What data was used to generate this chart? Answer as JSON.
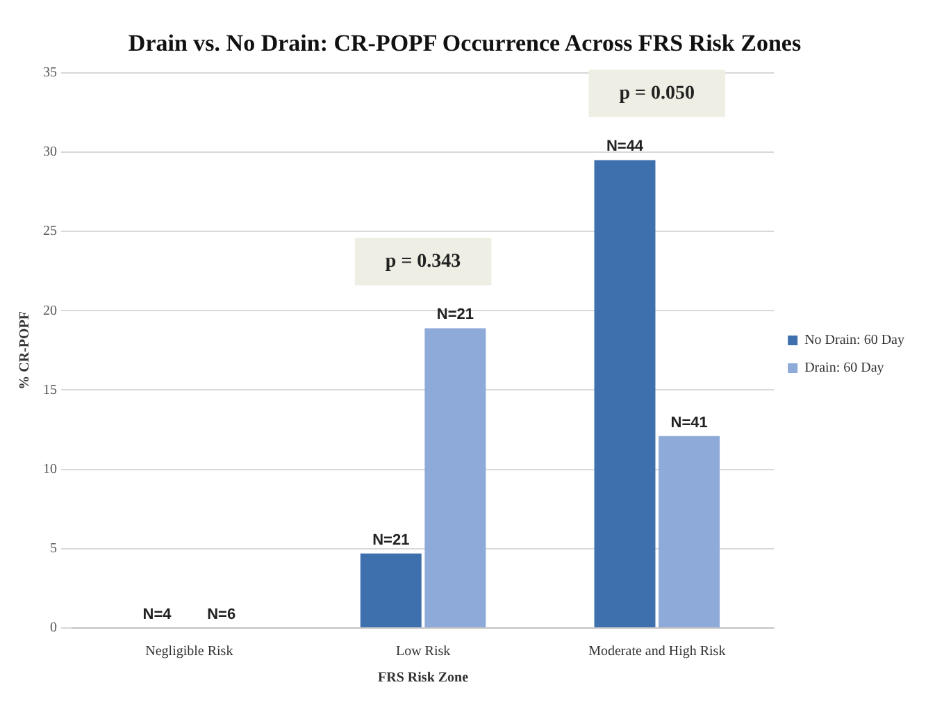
{
  "chart_data": {
    "type": "bar",
    "title": "Drain vs. No Drain: CR-POPF Occurrence Across FRS Risk Zones",
    "xlabel": "FRS Risk Zone",
    "ylabel": "% CR-POPF",
    "categories": [
      "Negligible Risk",
      "Low Risk",
      "Moderate and High Risk"
    ],
    "series": [
      {
        "name": "No Drain: 60 Day",
        "color": "#3f70ae",
        "values": [
          0,
          4.7,
          29.5
        ]
      },
      {
        "name": "Drain: 60 Day",
        "color": "#8eaad8",
        "values": [
          0,
          18.9,
          12.1
        ]
      }
    ],
    "annotations": [
      "p = 0.343",
      "p = 0.050",
      {
        "text": "N=4",
        "x": "Negligible Risk",
        "y": 0
      },
      {
        "text": "N=6",
        "x": "Negligible Risk",
        "y": 0
      },
      {
        "text": "N=21",
        "x": "Low Risk",
        "y": 4.7
      },
      {
        "text": "N=21",
        "x": "Low Risk",
        "y": 18.9
      },
      {
        "text": "N=44",
        "x": "Moderate and High Risk",
        "y": 29.5
      },
      {
        "text": "N=41",
        "x": "Moderate and High Risk",
        "y": 12.1
      }
    ],
    "ylim": [
      0,
      35
    ],
    "yticks": [
      0,
      5,
      10,
      15,
      20,
      25,
      30,
      35
    ],
    "grid": "y",
    "legend": "right"
  }
}
